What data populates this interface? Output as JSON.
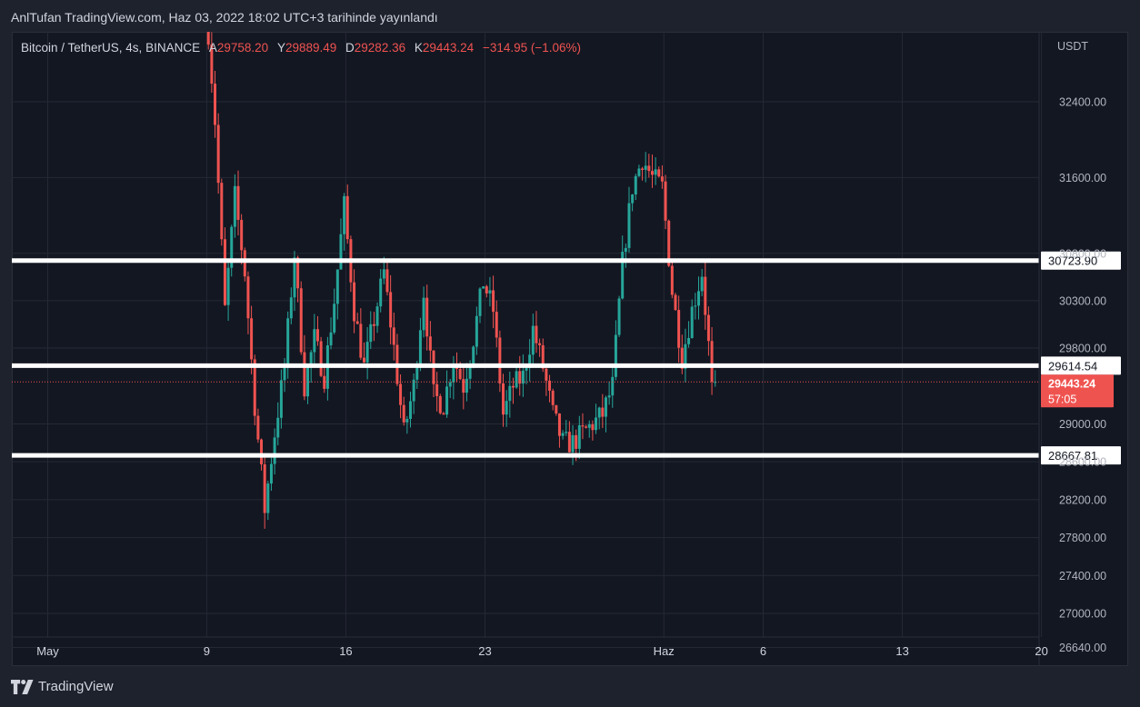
{
  "header": {
    "text": "AnlTufan TradingView.com, Haz 03, 2022 18:02 UTC+3 tarihinde yayınlandı"
  },
  "legend": {
    "symbol": "Bitcoin / TetherUS, 4s, BINANCE",
    "open_label": "A",
    "open": "29758.20",
    "high_label": "Y",
    "high": "29889.49",
    "low_label": "D",
    "low": "29282.36",
    "close_label": "K",
    "close": "29443.24",
    "change": "−314.95 (−1.06%)"
  },
  "footer": {
    "brand": "TradingView"
  },
  "colors": {
    "up": "#26a69a",
    "down": "#ef5350",
    "background": "#131722",
    "grid": "#252935",
    "level_line": "#ffffff"
  },
  "chart_data": {
    "type": "candlestick",
    "currency_label": "USDT",
    "y_ticks": [
      32400,
      31600,
      30800,
      30300,
      29800,
      29000,
      28600,
      28200,
      27800,
      27400,
      27000,
      26640
    ],
    "y_tick_labels": [
      "32400.00",
      "31600.00",
      "30800.00",
      "30300.00",
      "29800.00",
      "29000.00",
      "28600.00",
      "28200.00",
      "27800.00",
      "27400.00",
      "27000.00",
      "26640.00"
    ],
    "x_ticks": [
      {
        "label": "May",
        "date": "2022-05-01"
      },
      {
        "label": "9",
        "date": "2022-05-09"
      },
      {
        "label": "16",
        "date": "2022-05-16"
      },
      {
        "label": "23",
        "date": "2022-05-23"
      },
      {
        "label": "Haz",
        "date": "2022-06-01"
      },
      {
        "label": "6",
        "date": "2022-06-06"
      },
      {
        "label": "13",
        "date": "2022-06-13"
      },
      {
        "label": "20",
        "date": "2022-06-20"
      }
    ],
    "levels": [
      {
        "value": 30723.9,
        "label": "30723.90"
      },
      {
        "value": 29614.54,
        "label": "29614.54"
      },
      {
        "value": 28667.81,
        "label": "28667.81"
      }
    ],
    "last_price": {
      "value": 29443.24,
      "label": "29443.24",
      "countdown": "57:05"
    },
    "path": [
      [
        "2022-05-09",
        33600
      ],
      [
        "2022-05-09T12",
        32200
      ],
      [
        "2022-05-10",
        30200
      ],
      [
        "2022-05-10T12",
        31400
      ],
      [
        "2022-05-11",
        30600
      ],
      [
        "2022-05-11T12",
        29200
      ],
      [
        "2022-05-12",
        28100
      ],
      [
        "2022-05-12T12",
        28900
      ],
      [
        "2022-05-13",
        29600
      ],
      [
        "2022-05-13T12",
        30800
      ],
      [
        "2022-05-14",
        29400
      ],
      [
        "2022-05-14T12",
        29900
      ],
      [
        "2022-05-15",
        29500
      ],
      [
        "2022-05-15T12",
        30300
      ],
      [
        "2022-05-16",
        31300
      ],
      [
        "2022-05-16T12",
        30200
      ],
      [
        "2022-05-17",
        29600
      ],
      [
        "2022-05-17T12",
        30100
      ],
      [
        "2022-05-18",
        30600
      ],
      [
        "2022-05-18T12",
        29800
      ],
      [
        "2022-05-19",
        28900
      ],
      [
        "2022-05-19T12",
        29400
      ],
      [
        "2022-05-20",
        30400
      ],
      [
        "2022-05-20T12",
        29300
      ],
      [
        "2022-05-21",
        29200
      ],
      [
        "2022-05-21T12",
        29700
      ],
      [
        "2022-05-22",
        29400
      ],
      [
        "2022-05-22T12",
        29900
      ],
      [
        "2022-05-23",
        30500
      ],
      [
        "2022-05-23T12",
        30200
      ],
      [
        "2022-05-24",
        29100
      ],
      [
        "2022-05-24T12",
        29400
      ],
      [
        "2022-05-25",
        29500
      ],
      [
        "2022-05-25T12",
        30000
      ],
      [
        "2022-05-26",
        29600
      ],
      [
        "2022-05-26T12",
        29100
      ],
      [
        "2022-05-27",
        28800
      ],
      [
        "2022-05-27T12",
        28800
      ],
      [
        "2022-05-28",
        28900
      ],
      [
        "2022-05-28T12",
        29000
      ],
      [
        "2022-05-29",
        29100
      ],
      [
        "2022-05-29T12",
        29400
      ],
      [
        "2022-05-30",
        30700
      ],
      [
        "2022-05-30T12",
        31500
      ],
      [
        "2022-05-31",
        31800
      ],
      [
        "2022-05-31T12",
        31600
      ],
      [
        "2022-06-01",
        31500
      ],
      [
        "2022-06-01T12",
        30400
      ],
      [
        "2022-06-02",
        29700
      ],
      [
        "2022-06-02T12",
        30200
      ],
      [
        "2022-06-03",
        30600
      ],
      [
        "2022-06-03T12",
        29443
      ]
    ]
  }
}
